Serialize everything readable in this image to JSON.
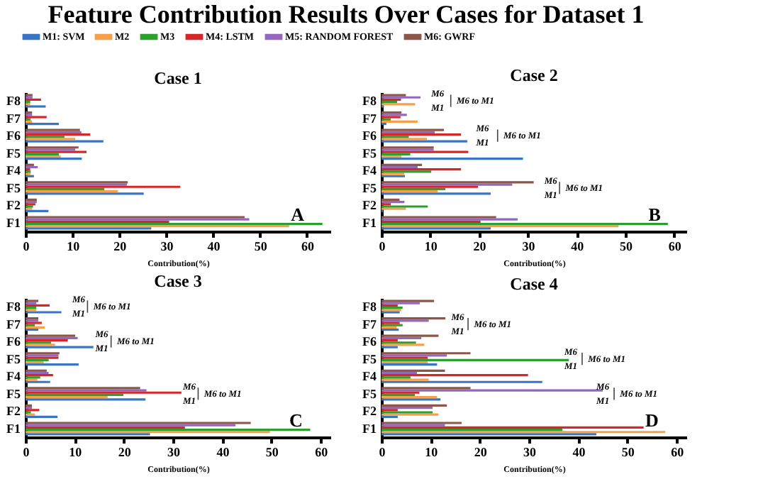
{
  "chart_data": [
    {
      "type": "bar",
      "orientation": "horizontal",
      "title": "Feature Contribution Results Over Cases for Dataset 1",
      "subtitle": "Case 1",
      "xlabel": "Contribution(%)",
      "legend": "top",
      "categories": [
        "F8",
        "F7",
        "F6",
        "F5",
        "F4",
        "F5",
        "F2",
        "F1"
      ],
      "series": [
        {
          "name": "M1: SVM",
          "color": "#3a75c4",
          "values": [
            4.3,
            7.1,
            16.6,
            12,
            1.8,
            25.2,
            4.9,
            26.8
          ]
        },
        {
          "name": "M2",
          "color": "#f7a04a",
          "values": [
            1,
            1.4,
            10.6,
            7.5,
            1.1,
            19.7,
            1.4,
            56.2
          ]
        },
        {
          "name": "M3",
          "color": "#2ca02c",
          "values": [
            1,
            1.1,
            8.3,
            7.1,
            1.1,
            16.8,
            1.6,
            63.3
          ]
        },
        {
          "name": "M4: LSTM",
          "color": "#d62728",
          "values": [
            3.3,
            4.5,
            13.8,
            13,
            1,
            33,
            2.1,
            30.6
          ]
        },
        {
          "name": "M5: RANDOM FOREST",
          "color": "#9467bd",
          "values": [
            1.5,
            1.4,
            11.9,
            10.6,
            2.6,
            21.6,
            2.4,
            47.7
          ]
        },
        {
          "name": "M6: GWRF",
          "color": "#8c564b",
          "values": [
            1.5,
            1.4,
            11.6,
            11.3,
            1.8,
            21.8,
            2.4,
            46.7
          ]
        }
      ],
      "xlim": [
        0,
        65
      ],
      "xticks": [
        0,
        10,
        20,
        30,
        40,
        50,
        60
      ],
      "annotations": [
        "A"
      ]
    },
    {
      "type": "bar",
      "orientation": "horizontal",
      "title": "Case 2",
      "xlabel": "Contribution(%)",
      "categories": [
        "F8",
        "F7",
        "F6",
        "F5",
        "F4",
        "F5",
        "F2",
        "F1"
      ],
      "series": [
        {
          "name": "M1: SVM",
          "color": "#3a75c4",
          "values": [
            0.5,
            1,
            17.6,
            29,
            4.8,
            22.4,
            0.3,
            22.4
          ]
        },
        {
          "name": "M2",
          "color": "#f7a04a",
          "values": [
            6.9,
            7.4,
            9.3,
            4.1,
            4.7,
            11.5,
            5,
            48.6
          ]
        },
        {
          "name": "M3",
          "color": "#2ca02c",
          "values": [
            3.2,
            1.9,
            5.6,
            5.9,
            10.2,
            13.1,
            9.5,
            58.7
          ]
        },
        {
          "name": "M4: LSTM",
          "color": "#d62728",
          "values": [
            4,
            3.9,
            16.3,
            17.8,
            16.3,
            19.8,
            1.9,
            20.3
          ]
        },
        {
          "name": "M5: RANDOM FOREST",
          "color": "#9467bd",
          "values": [
            8,
            5.2,
            10.9,
            10.7,
            7.4,
            26.8,
            4.7,
            27.9
          ]
        },
        {
          "name": "M6: GWRF",
          "color": "#8c564b",
          "values": [
            5,
            4.1,
            12.8,
            10.7,
            8.3,
            31.2,
            3.7,
            23.5
          ]
        }
      ],
      "xlim": [
        0,
        62.5
      ],
      "xticks": [
        0,
        10,
        20,
        30,
        40,
        50,
        60
      ],
      "annotations": [
        "M6",
        "M1",
        "M6 to M1",
        "M6",
        "M1",
        "M6 to M1",
        "M6",
        "M1",
        "M6 to M1",
        "B"
      ]
    },
    {
      "type": "bar",
      "orientation": "horizontal",
      "title": "Case 3",
      "xlabel": "Contribution(%)",
      "categories": [
        "F8",
        "F7",
        "F6",
        "F5",
        "F4",
        "F5",
        "F2",
        "F1"
      ],
      "series": [
        {
          "name": "M1: SVM",
          "color": "#3a75c4",
          "values": [
            7.3,
            2.6,
            13.8,
            10.8,
            5,
            24.4,
            6.5,
            25.3
          ]
        },
        {
          "name": "M2",
          "color": "#f7a04a",
          "values": [
            2.2,
            3.9,
            6,
            3.7,
            2.4,
            16.7,
            1.9,
            49.7
          ]
        },
        {
          "name": "M3",
          "color": "#2ca02c",
          "values": [
            2.2,
            1.9,
            5.2,
            4.7,
            3,
            19.9,
            1.1,
            57.9
          ]
        },
        {
          "name": "M4: LSTM",
          "color": "#d62728",
          "values": [
            4.9,
            3.3,
            8.6,
            6.7,
            5.6,
            31.7,
            2.8,
            32.4
          ]
        },
        {
          "name": "M5: RANDOM FOREST",
          "color": "#9467bd",
          "values": [
            2.2,
            2.6,
            10.6,
            6.7,
            4.7,
            24.6,
            1.3,
            42.7
          ]
        },
        {
          "name": "M6: GWRF",
          "color": "#8c564b",
          "values": [
            2.6,
            2.6,
            10.1,
            6.9,
            4.3,
            23.3,
            1.3,
            45.8
          ]
        }
      ],
      "xlim": [
        0,
        62
      ],
      "xticks": [
        0,
        10,
        20,
        30,
        40,
        50,
        60
      ],
      "annotations": [
        "M6",
        "M1",
        "M6 to M1",
        "M6",
        "M1",
        "M6 to M1",
        "M6",
        "M1",
        "M6 to M1",
        "C"
      ]
    },
    {
      "type": "bar",
      "orientation": "horizontal",
      "title": "Case 4",
      "xlabel": "Contribution(%)",
      "categories": [
        "F8",
        "F7",
        "F6",
        "F5",
        "F4",
        "F5",
        "F2",
        "F1"
      ],
      "series": [
        {
          "name": "M1: SVM",
          "color": "#3a75c4",
          "values": [
            3.7,
            3.5,
            3.3,
            11.3,
            32.7,
            12,
            3.3,
            43.7
          ]
        },
        {
          "name": "M2",
          "color": "#f7a04a",
          "values": [
            4,
            3.1,
            8.7,
            9.4,
            9.6,
            11.3,
            11.6,
            57.7
          ]
        },
        {
          "name": "M3",
          "color": "#2ca02c",
          "values": [
            4.3,
            4.3,
            7,
            38.1,
            5.9,
            6.8,
            10.4,
            36.8
          ]
        },
        {
          "name": "M4: LSTM",
          "color": "#d62728",
          "values": [
            3.3,
            3.7,
            3.3,
            9.4,
            29.8,
            7.7,
            3.3,
            53.3
          ]
        },
        {
          "name": "M5: RANDOM FOREST",
          "color": "#9467bd",
          "values": [
            7.8,
            9.6,
            8.1,
            13.3,
            7.2,
            45,
            10.4,
            12.9
          ]
        },
        {
          "name": "M6: GWRF",
          "color": "#8c564b",
          "values": [
            10.7,
            13,
            11.6,
            18.1,
            12.9,
            18.1,
            13.3,
            16.3
          ]
        }
      ],
      "xlim": [
        0,
        62
      ],
      "xticks": [
        0,
        10,
        20,
        30,
        40,
        50,
        60
      ],
      "annotations": [
        "M6",
        "M1",
        "M6 to M1",
        "M6",
        "M1",
        "M6 to M1",
        "M6",
        "M1",
        "M6 to M1",
        "D"
      ]
    }
  ]
}
